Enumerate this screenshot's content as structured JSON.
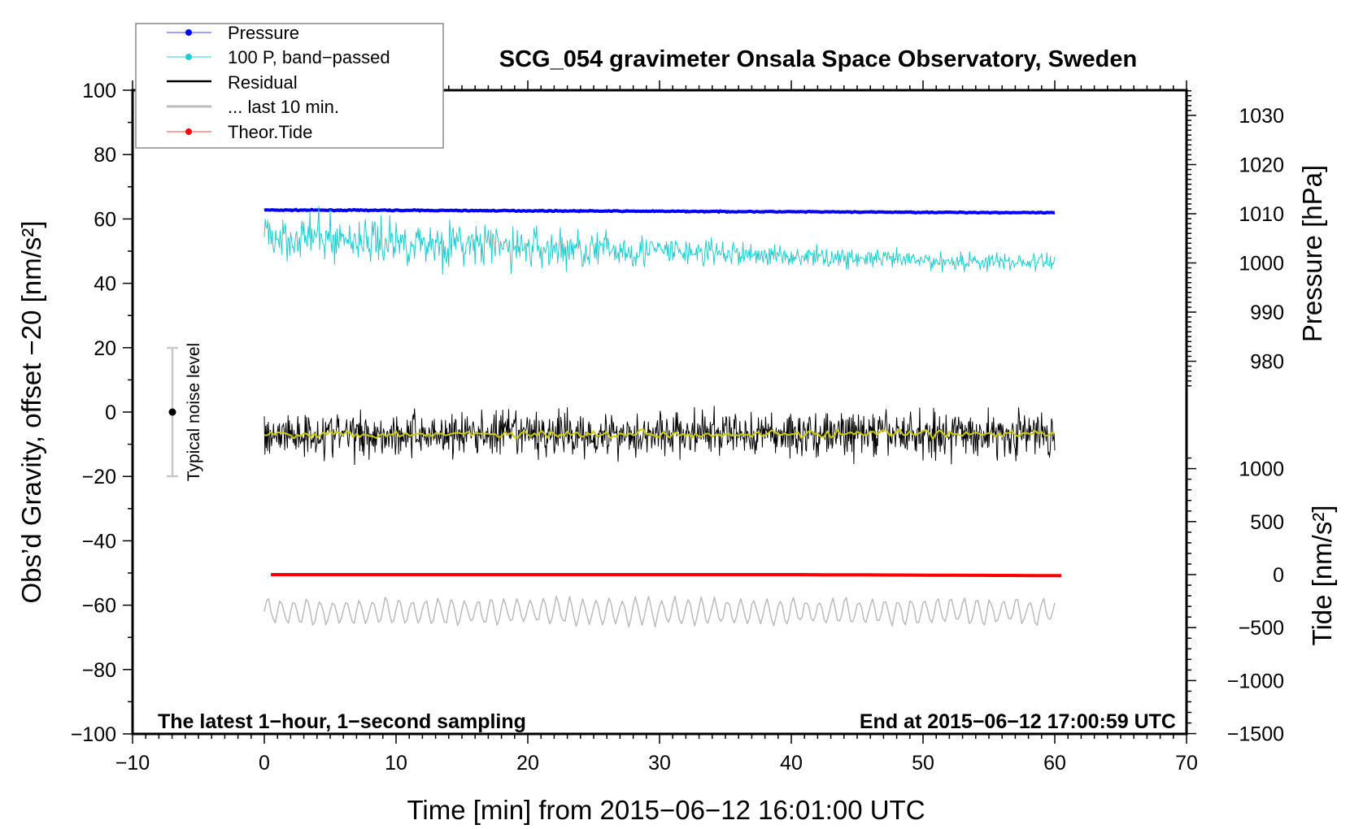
{
  "chart_data": {
    "type": "line",
    "title": "SCG_054 gravimeter Onsala Space Observatory, Sweden",
    "xlabel": "Time [min] from 2015−06−12 16:01:00 UTC",
    "ylabel_left": "Obs’d Gravity, offset −20 [nm/s²]",
    "ylabel_right_top": "Pressure [hPa]",
    "ylabel_right_bottom": "Tide [nm/s²]",
    "xlim": [
      -10,
      70
    ],
    "ylim_left": [
      -100,
      100
    ],
    "pressure_axis": {
      "ticks": [
        980,
        990,
        1000,
        1010,
        1020,
        1030
      ],
      "range_at_plot": [
        965.2,
        1035.2
      ]
    },
    "tide_axis": {
      "ticks": [
        -1500,
        -1000,
        -500,
        0,
        500,
        1000
      ],
      "range_at_plot": [
        -1500,
        4573
      ]
    },
    "x_ticks": [
      "−10",
      "0",
      "10",
      "20",
      "30",
      "40",
      "50",
      "60",
      "70"
    ],
    "y_ticks_left": [
      "−100",
      "−80",
      "−60",
      "−40",
      "−20",
      "0",
      "20",
      "40",
      "60",
      "80",
      "100"
    ],
    "y_ticks_pressure": [
      "980",
      "990",
      "1000",
      "1010",
      "1020",
      "1030"
    ],
    "y_ticks_tide": [
      "−1500",
      "−1000",
      "−500",
      "0",
      "500",
      "1000"
    ],
    "legend": {
      "placement": "top-left",
      "entries": [
        "Pressure",
        "100 P, band−passed",
        "Residual",
        "... last 10 min.",
        "Theor.Tide"
      ]
    },
    "annotations": {
      "bottom_left": "The latest 1−hour, 1−second sampling",
      "bottom_right": "End at 2015−06−12 17:00:59 UTC",
      "noise_label": "Typical noise level"
    },
    "noise_bar": {
      "x": -7,
      "center": 0,
      "low": -20,
      "high": 20
    },
    "series": [
      {
        "name": "Pressure",
        "axis": "pressure",
        "color": "#0000ff",
        "x": [
          0,
          10,
          20,
          30,
          40,
          50,
          60
        ],
        "y": [
          1010.75,
          1010.7,
          1010.6,
          1010.5,
          1010.4,
          1010.3,
          1010.2
        ],
        "noise": 0.05
      },
      {
        "name": "100 P, band-passed",
        "axis": "left",
        "color": "#22cccc",
        "x": [
          0,
          10,
          20,
          30,
          40,
          50,
          60
        ],
        "y": [
          55,
          53,
          51,
          50,
          48.5,
          47,
          46.5
        ],
        "noise_profile": [
          3.5,
          3.5,
          3.5,
          2.5,
          1.5,
          1.5,
          1.5
        ]
      },
      {
        "name": "Residual",
        "axis": "left",
        "color": "#000000",
        "x": [
          0,
          60
        ],
        "y": [
          -6.8,
          -6.8
        ],
        "noise": 3.5
      },
      {
        "name": "Residual smoothed",
        "axis": "left",
        "color": "#cccc00",
        "x": [
          0,
          60
        ],
        "y": [
          -6.8,
          -6.8
        ],
        "noise": 0.6
      },
      {
        "name": "... last 10 min.",
        "axis": "left",
        "color": "#bbbbbb",
        "x": [
          0,
          60
        ],
        "y": [
          -62,
          -62
        ],
        "noise": 4
      },
      {
        "name": "Theor.Tide",
        "axis": "tide",
        "color": "#ff0000",
        "x": [
          0.5,
          20,
          40,
          60.5
        ],
        "y": [
          0,
          0,
          0,
          -10
        ],
        "noise": 0
      }
    ]
  }
}
